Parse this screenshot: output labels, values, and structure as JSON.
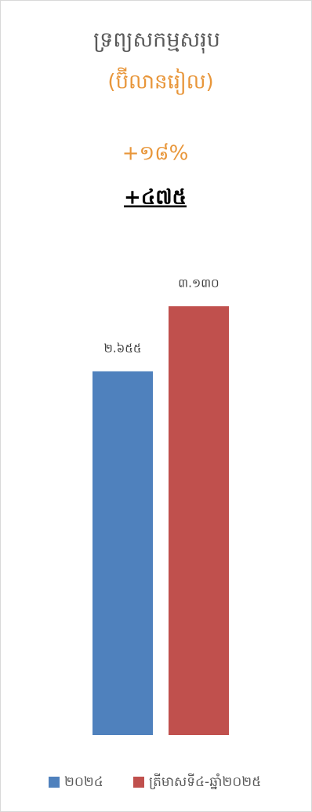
{
  "chart_data": {
    "type": "bar",
    "title": "ទ្រព្យសកម្មសរុប",
    "subtitle": "(ប៊ីលានរៀល)",
    "annotations": [
      "+១៨%",
      "+៤៧៥"
    ],
    "categories": [
      null
    ],
    "series": [
      {
        "name": "២០២៤",
        "color": "#4f81bd",
        "values": [
          2655
        ],
        "value_labels": [
          "២.៦៥៥"
        ]
      },
      {
        "name": "ត្រីមាសទី៤-ឆ្នាំ២០២៥",
        "color": "#c0504d",
        "values": [
          3130
        ],
        "value_labels": [
          "៣.១៣០"
        ]
      }
    ],
    "grid": false,
    "legend": "bottom"
  }
}
